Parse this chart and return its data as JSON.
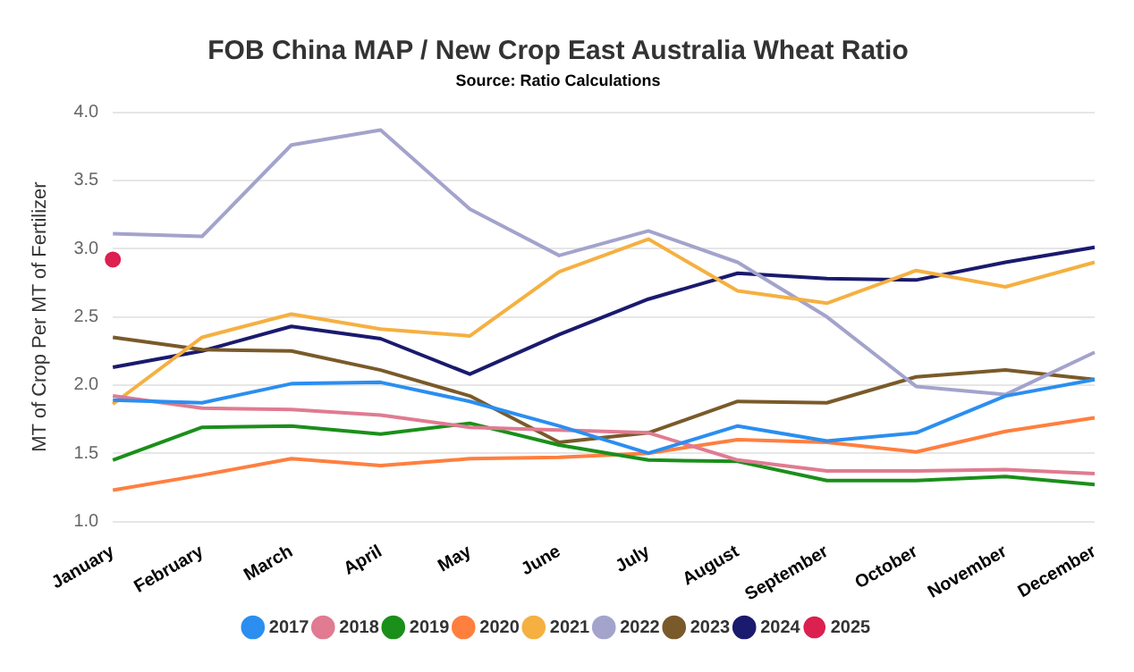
{
  "chart_data": {
    "type": "line",
    "title": "FOB China MAP / New Crop East Australia Wheat Ratio",
    "subtitle": "Source: Ratio Calculations",
    "ylabel": "MT of Crop Per MT of Fertilizer",
    "categories": [
      "January",
      "February",
      "March",
      "April",
      "May",
      "June",
      "July",
      "August",
      "September",
      "October",
      "November",
      "December"
    ],
    "series": [
      {
        "name": "2017",
        "color": "#2b8ef0",
        "values": [
          1.89,
          1.87,
          2.01,
          2.02,
          1.88,
          1.7,
          1.5,
          1.7,
          1.59,
          1.65,
          1.92,
          2.04
        ]
      },
      {
        "name": "2018",
        "color": "#e07b91",
        "values": [
          1.92,
          1.83,
          1.82,
          1.78,
          1.69,
          1.67,
          1.65,
          1.45,
          1.37,
          1.37,
          1.38,
          1.35
        ]
      },
      {
        "name": "2019",
        "color": "#1a8f1a",
        "values": [
          1.45,
          1.69,
          1.7,
          1.64,
          1.72,
          1.56,
          1.45,
          1.44,
          1.3,
          1.3,
          1.33,
          1.27
        ]
      },
      {
        "name": "2020",
        "color": "#ff7f3f",
        "values": [
          1.23,
          1.34,
          1.46,
          1.41,
          1.46,
          1.47,
          1.5,
          1.6,
          1.58,
          1.51,
          1.66,
          1.76
        ]
      },
      {
        "name": "2021",
        "color": "#f5b041",
        "values": [
          1.86,
          2.35,
          2.52,
          2.41,
          2.36,
          2.83,
          3.07,
          2.69,
          2.6,
          2.84,
          2.72,
          2.9
        ]
      },
      {
        "name": "2022",
        "color": "#a3a3cc",
        "values": [
          3.11,
          3.09,
          3.76,
          3.87,
          3.29,
          2.95,
          3.13,
          2.9,
          2.5,
          1.99,
          1.93,
          2.24
        ]
      },
      {
        "name": "2023",
        "color": "#7a5a2a",
        "values": [
          2.35,
          2.26,
          2.25,
          2.11,
          1.92,
          1.58,
          1.65,
          1.88,
          1.87,
          2.06,
          2.11,
          2.04
        ]
      },
      {
        "name": "2024",
        "color": "#1a1a6e",
        "values": [
          2.13,
          2.25,
          2.43,
          2.34,
          2.08,
          2.37,
          2.63,
          2.82,
          2.78,
          2.77,
          2.9,
          3.01
        ]
      },
      {
        "name": "2025",
        "type": "scatter",
        "marker": "circle",
        "color": "#dc2050",
        "values": [
          2.92,
          null,
          null,
          null,
          null,
          null,
          null,
          null,
          null,
          null,
          null,
          null
        ]
      }
    ],
    "ylim": [
      1.0,
      4.0
    ],
    "yticks": [
      {
        "value": 1.0,
        "label": "1.0"
      },
      {
        "value": 1.5,
        "label": "1.5"
      },
      {
        "value": 2.0,
        "label": "2.0"
      },
      {
        "value": 2.5,
        "label": "2.5"
      },
      {
        "value": 3.0,
        "label": "3.0"
      },
      {
        "value": 3.5,
        "label": "3.5"
      },
      {
        "value": 4.0,
        "label": "4.0"
      }
    ],
    "grid": "y",
    "legend": "bottom",
    "marker": "none",
    "line_style": "solid"
  }
}
